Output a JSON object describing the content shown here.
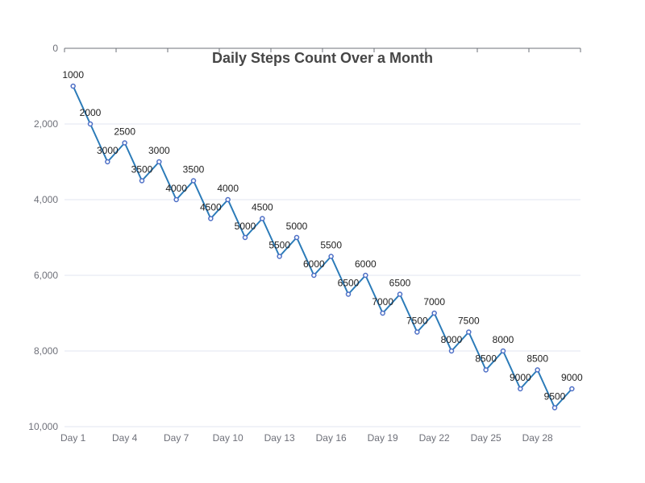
{
  "chart_data": {
    "type": "line",
    "title": "Daily Steps Count Over a Month",
    "xlabel": "",
    "ylabel": "",
    "y_inverted": true,
    "ylim": [
      0,
      10000
    ],
    "y_ticks": [
      {
        "value": 0,
        "label": "0"
      },
      {
        "value": 2000,
        "label": "2,000"
      },
      {
        "value": 4000,
        "label": "4,000"
      },
      {
        "value": 6000,
        "label": "6,000"
      },
      {
        "value": 8000,
        "label": "8,000"
      },
      {
        "value": 10000,
        "label": "10,000"
      }
    ],
    "x_tick_labels": [
      "Day 1",
      "Day 4",
      "Day 7",
      "Day 10",
      "Day 13",
      "Day 16",
      "Day 19",
      "Day 22",
      "Day 25",
      "Day 28"
    ],
    "grid": "horizontal",
    "categories": [
      "Day 1",
      "Day 2",
      "Day 3",
      "Day 4",
      "Day 5",
      "Day 6",
      "Day 7",
      "Day 8",
      "Day 9",
      "Day 10",
      "Day 11",
      "Day 12",
      "Day 13",
      "Day 14",
      "Day 15",
      "Day 16",
      "Day 17",
      "Day 18",
      "Day 19",
      "Day 20",
      "Day 21",
      "Day 22",
      "Day 23",
      "Day 24",
      "Day 25",
      "Day 26",
      "Day 27",
      "Day 28",
      "Day 29",
      "Day 30"
    ],
    "series": [
      {
        "values": [
          1000,
          2000,
          3000,
          2500,
          3500,
          3000,
          4000,
          3500,
          4500,
          4000,
          5000,
          4500,
          5500,
          5000,
          6000,
          5500,
          6500,
          6000,
          7000,
          6500,
          7500,
          7000,
          8000,
          7500,
          8500,
          8000,
          9000,
          8500,
          9500,
          9000
        ],
        "color": "#2b7bb8",
        "marker_color": "#4e6fc6"
      }
    ]
  }
}
